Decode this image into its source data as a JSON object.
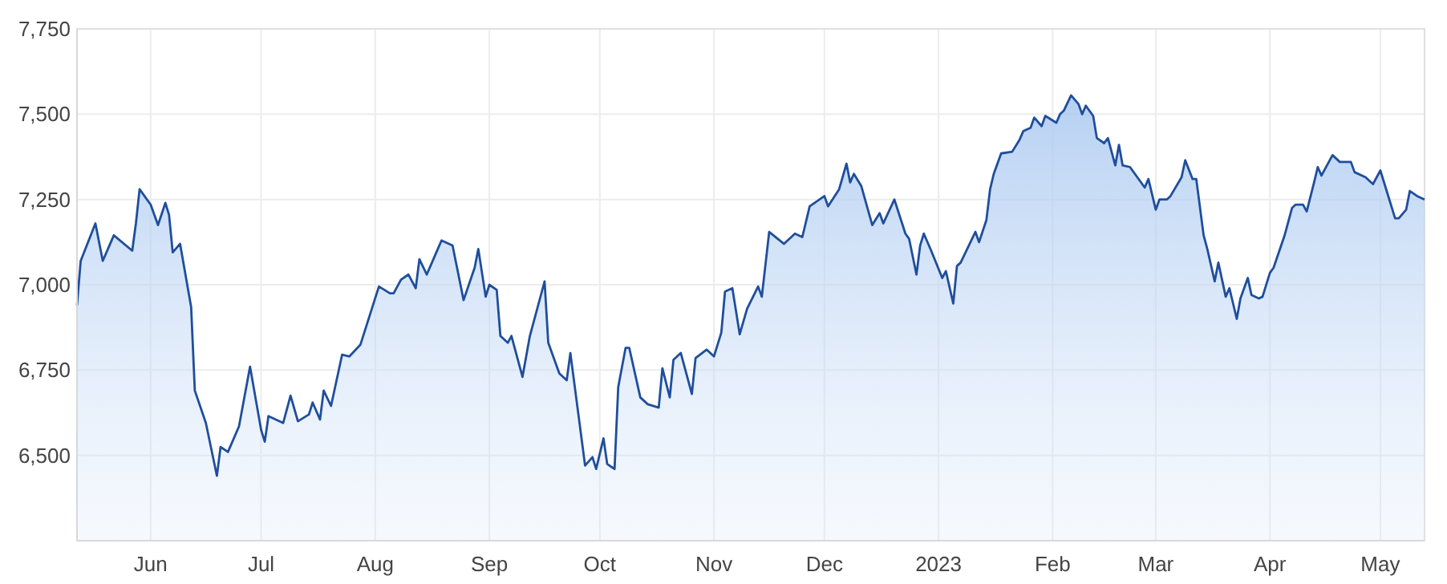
{
  "chart_data": {
    "type": "area",
    "grid": true,
    "marker": "none",
    "line_style": "solid",
    "xlim": [
      "2022-05-12",
      "2023-05-13"
    ],
    "ylim": [
      6250,
      7750
    ],
    "xticks": [
      {
        "value": "2022-06-01",
        "label": "Jun"
      },
      {
        "value": "2022-07-01",
        "label": "Jul"
      },
      {
        "value": "2022-08-01",
        "label": "Aug"
      },
      {
        "value": "2022-09-01",
        "label": "Sep"
      },
      {
        "value": "2022-10-01",
        "label": "Oct"
      },
      {
        "value": "2022-11-01",
        "label": "Nov"
      },
      {
        "value": "2022-12-01",
        "label": "Dec"
      },
      {
        "value": "2023-01-01",
        "label": "2023"
      },
      {
        "value": "2023-02-01",
        "label": "Feb"
      },
      {
        "value": "2023-03-01",
        "label": "Mar"
      },
      {
        "value": "2023-04-01",
        "label": "Apr"
      },
      {
        "value": "2023-05-01",
        "label": "May"
      }
    ],
    "yticks": [
      {
        "value": 6500,
        "label": "6,500"
      },
      {
        "value": 6750,
        "label": "6,750"
      },
      {
        "value": 7000,
        "label": "7,000"
      },
      {
        "value": 7250,
        "label": "7,250"
      },
      {
        "value": 7500,
        "label": "7,500"
      },
      {
        "value": 7750,
        "label": "7,750"
      }
    ],
    "x": [
      "2022-05-12",
      "2022-05-13",
      "2022-05-17",
      "2022-05-19",
      "2022-05-22",
      "2022-05-27",
      "2022-05-28",
      "2022-05-29",
      "2022-06-01",
      "2022-06-03",
      "2022-06-05",
      "2022-06-06",
      "2022-06-07",
      "2022-06-09",
      "2022-06-12",
      "2022-06-13",
      "2022-06-16",
      "2022-06-19",
      "2022-06-20",
      "2022-06-22",
      "2022-06-25",
      "2022-06-28",
      "2022-07-01",
      "2022-07-02",
      "2022-07-03",
      "2022-07-07",
      "2022-07-09",
      "2022-07-11",
      "2022-07-14",
      "2022-07-15",
      "2022-07-17",
      "2022-07-18",
      "2022-07-20",
      "2022-07-23",
      "2022-07-25",
      "2022-07-28",
      "2022-08-02",
      "2022-08-05",
      "2022-08-06",
      "2022-08-08",
      "2022-08-10",
      "2022-08-12",
      "2022-08-13",
      "2022-08-15",
      "2022-08-18",
      "2022-08-19",
      "2022-08-22",
      "2022-08-25",
      "2022-08-28",
      "2022-08-29",
      "2022-08-31",
      "2022-09-01",
      "2022-09-03",
      "2022-09-04",
      "2022-09-06",
      "2022-09-07",
      "2022-09-10",
      "2022-09-12",
      "2022-09-16",
      "2022-09-17",
      "2022-09-20",
      "2022-09-22",
      "2022-09-23",
      "2022-09-27",
      "2022-09-29",
      "2022-09-30",
      "2022-10-02",
      "2022-10-03",
      "2022-10-05",
      "2022-10-06",
      "2022-10-08",
      "2022-10-09",
      "2022-10-12",
      "2022-10-14",
      "2022-10-17",
      "2022-10-18",
      "2022-10-20",
      "2022-10-21",
      "2022-10-23",
      "2022-10-26",
      "2022-10-27",
      "2022-10-30",
      "2022-11-01",
      "2022-11-03",
      "2022-11-04",
      "2022-11-06",
      "2022-11-08",
      "2022-11-10",
      "2022-11-13",
      "2022-11-14",
      "2022-11-16",
      "2022-11-20",
      "2022-11-23",
      "2022-11-25",
      "2022-11-27",
      "2022-12-01",
      "2022-12-02",
      "2022-12-05",
      "2022-12-07",
      "2022-12-08",
      "2022-12-09",
      "2022-12-11",
      "2022-12-14",
      "2022-12-16",
      "2022-12-17",
      "2022-12-20",
      "2022-12-23",
      "2022-12-24",
      "2022-12-26",
      "2022-12-27",
      "2022-12-28",
      "2022-12-30",
      "2023-01-02",
      "2023-01-03",
      "2023-01-05",
      "2023-01-06",
      "2023-01-07",
      "2023-01-11",
      "2023-01-12",
      "2023-01-14",
      "2023-01-15",
      "2023-01-16",
      "2023-01-18",
      "2023-01-21",
      "2023-01-23",
      "2023-01-24",
      "2023-01-26",
      "2023-01-27",
      "2023-01-29",
      "2023-01-30",
      "2023-02-02",
      "2023-02-03",
      "2023-02-04",
      "2023-02-06",
      "2023-02-08",
      "2023-02-09",
      "2023-02-10",
      "2023-02-12",
      "2023-02-13",
      "2023-02-15",
      "2023-02-16",
      "2023-02-18",
      "2023-02-19",
      "2023-02-20",
      "2023-02-22",
      "2023-02-24",
      "2023-02-26",
      "2023-02-27",
      "2023-03-01",
      "2023-03-02",
      "2023-03-04",
      "2023-03-05",
      "2023-03-08",
      "2023-03-09",
      "2023-03-11",
      "2023-03-12",
      "2023-03-14",
      "2023-03-15",
      "2023-03-17",
      "2023-03-18",
      "2023-03-20",
      "2023-03-21",
      "2023-03-23",
      "2023-03-24",
      "2023-03-26",
      "2023-03-27",
      "2023-03-29",
      "2023-03-30",
      "2023-04-01",
      "2023-04-02",
      "2023-04-05",
      "2023-04-07",
      "2023-04-08",
      "2023-04-10",
      "2023-04-11",
      "2023-04-13",
      "2023-04-14",
      "2023-04-15",
      "2023-04-18",
      "2023-04-20",
      "2023-04-23",
      "2023-04-24",
      "2023-04-27",
      "2023-04-29",
      "2023-05-01",
      "2023-05-03",
      "2023-05-05",
      "2023-05-06",
      "2023-05-08",
      "2023-05-09",
      "2023-05-11",
      "2023-05-13"
    ],
    "series": [
      {
        "color": "#1f4e9c",
        "values": [
          6940,
          7070,
          7180,
          7070,
          7145,
          7100,
          7180,
          7280,
          7235,
          7175,
          7240,
          7205,
          7095,
          7120,
          6935,
          6690,
          6595,
          6440,
          6525,
          6510,
          6585,
          6760,
          6575,
          6540,
          6615,
          6595,
          6675,
          6600,
          6620,
          6655,
          6605,
          6690,
          6645,
          6795,
          6790,
          6825,
          6995,
          6975,
          6975,
          7015,
          7030,
          6990,
          7075,
          7030,
          7105,
          7130,
          7115,
          6955,
          7050,
          7105,
          6965,
          7000,
          6985,
          6850,
          6830,
          6850,
          6730,
          6850,
          7010,
          6830,
          6740,
          6720,
          6800,
          6470,
          6495,
          6460,
          6550,
          6475,
          6460,
          6700,
          6815,
          6815,
          6670,
          6650,
          6640,
          6755,
          6670,
          6780,
          6800,
          6680,
          6785,
          6810,
          6790,
          6860,
          6980,
          6990,
          6855,
          6930,
          6995,
          6965,
          7155,
          7120,
          7150,
          7140,
          7230,
          7260,
          7230,
          7280,
          7355,
          7300,
          7325,
          7290,
          7175,
          7210,
          7180,
          7250,
          7150,
          7135,
          7030,
          7115,
          7150,
          7100,
          7020,
          7040,
          6945,
          7055,
          7065,
          7155,
          7125,
          7190,
          7280,
          7325,
          7385,
          7390,
          7425,
          7450,
          7460,
          7490,
          7465,
          7495,
          7475,
          7500,
          7510,
          7555,
          7530,
          7500,
          7525,
          7495,
          7430,
          7415,
          7430,
          7350,
          7410,
          7350,
          7345,
          7315,
          7285,
          7310,
          7220,
          7250,
          7250,
          7260,
          7315,
          7365,
          7310,
          7310,
          7145,
          7105,
          7010,
          7065,
          6965,
          6990,
          6900,
          6960,
          7020,
          6970,
          6960,
          6965,
          7035,
          7050,
          7145,
          7225,
          7235,
          7235,
          7215,
          7300,
          7345,
          7320,
          7380,
          7360,
          7360,
          7330,
          7315,
          7295,
          7335,
          7265,
          7195,
          7195,
          7220,
          7275,
          7260,
          7250
        ]
      }
    ]
  }
}
